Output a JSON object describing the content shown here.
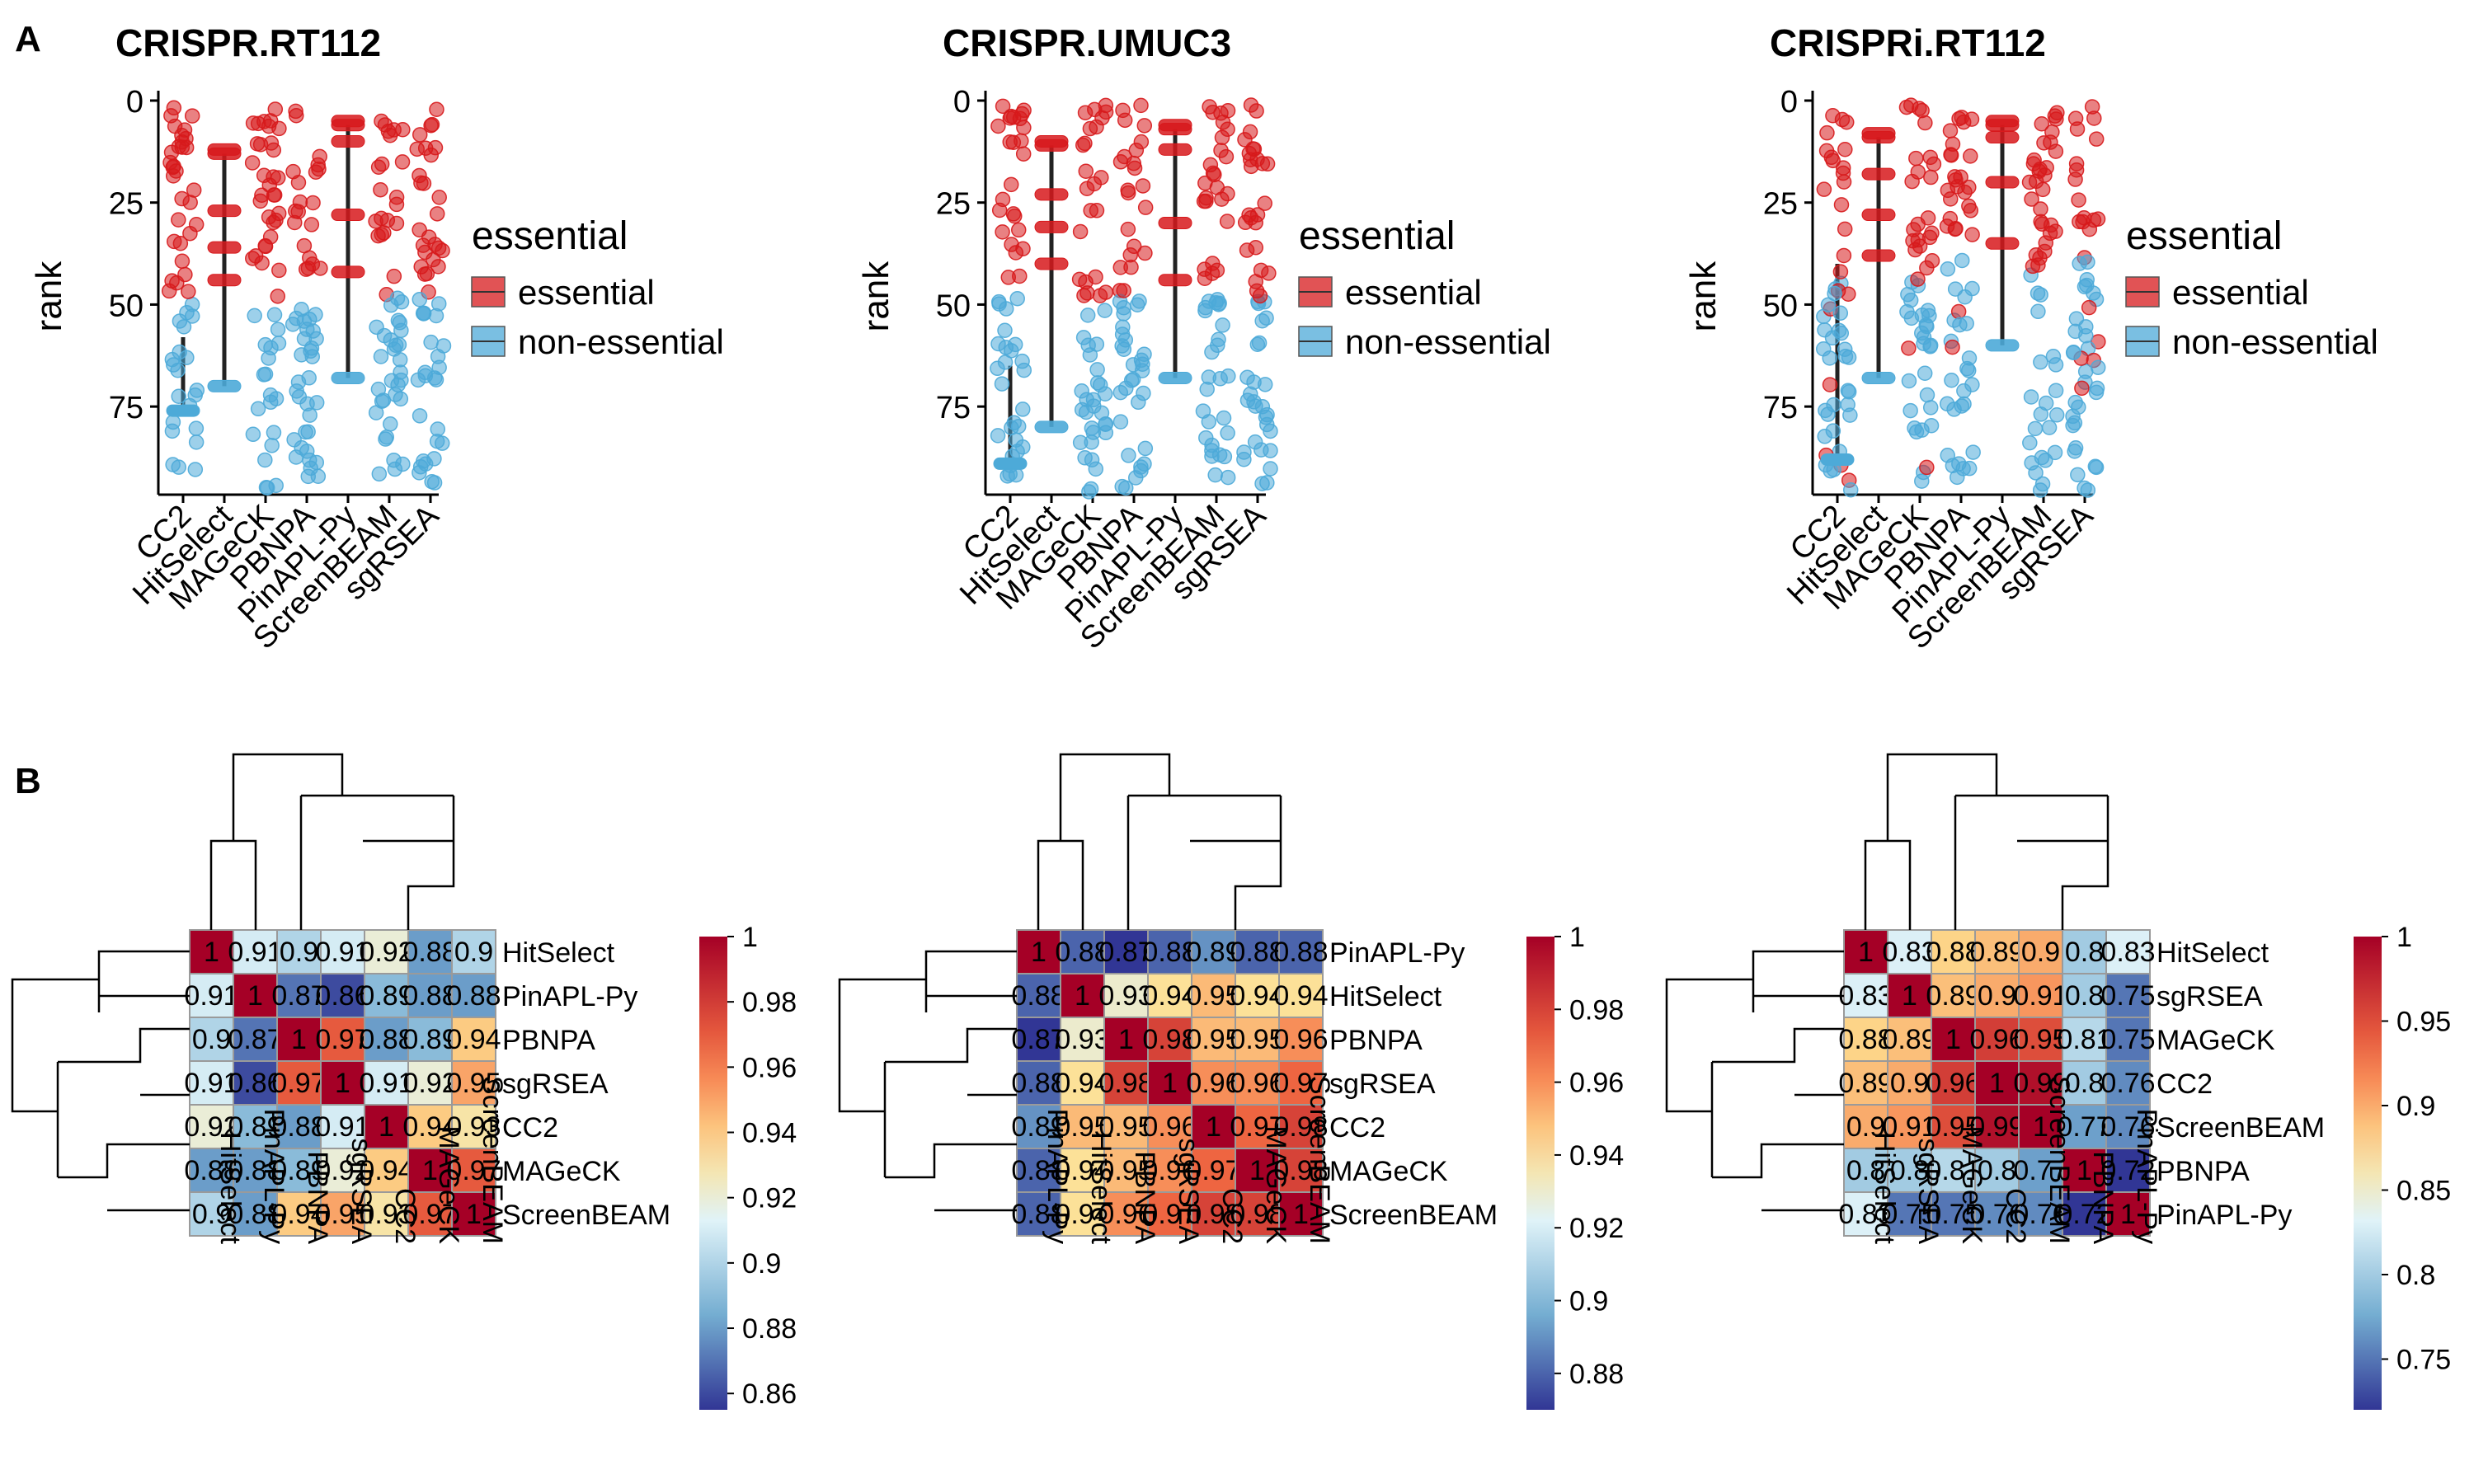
{
  "panel_labels": [
    "A",
    "B"
  ],
  "chart_data": [
    {
      "type": "strip+boxplot",
      "title": "CRISPR.RT112",
      "xlabel": "",
      "ylabel": "rank",
      "ylim": [
        0,
        97
      ],
      "y_reversed": true,
      "y_ticks": [
        0,
        25,
        50,
        75
      ],
      "categories": [
        "CC2",
        "HitSelect",
        "MAGeCK",
        "PBNPA",
        "PinAPL-Py",
        "ScreenBEAM",
        "sgRSEA"
      ],
      "legend": {
        "title": "essential",
        "entries": [
          "essential",
          "non-essential"
        ],
        "position": "right"
      },
      "colors": {
        "essential": "#d7191c",
        "non-essential": "#4daad8"
      },
      "essential_rank_max": [
        48,
        45,
        48,
        48,
        48,
        48,
        48
      ],
      "sparse": {
        "HitSelect": {
          "essential": [
            12,
            13,
            27,
            36,
            44
          ],
          "non-essential": [
            70
          ]
        },
        "PinAPL-Py": {
          "essential": [
            5,
            6,
            10,
            28,
            42
          ],
          "non-essential": [
            68
          ]
        }
      },
      "boxes": [
        {
          "category": "CC2",
          "median": 76,
          "q1": 58,
          "q3": 76
        },
        {
          "category": "HitSelect",
          "median": 70,
          "q1": 13,
          "q3": 70
        },
        {
          "category": "PinAPL-Py",
          "median": 68,
          "q1": 6,
          "q3": 68
        }
      ]
    },
    {
      "type": "strip+boxplot",
      "title": "CRISPR.UMUC3",
      "xlabel": "",
      "ylabel": "rank",
      "ylim": [
        0,
        97
      ],
      "y_reversed": true,
      "y_ticks": [
        0,
        25,
        50,
        75
      ],
      "categories": [
        "CC2",
        "HitSelect",
        "MAGeCK",
        "PBNPA",
        "PinAPL-Py",
        "ScreenBEAM",
        "sgRSEA"
      ],
      "legend": {
        "title": "essential",
        "entries": [
          "essential",
          "non-essential"
        ],
        "position": "right"
      },
      "colors": {
        "essential": "#d7191c",
        "non-essential": "#4daad8"
      },
      "essential_rank_max": [
        45,
        45,
        48,
        48,
        48,
        48,
        48
      ],
      "sparse": {
        "HitSelect": {
          "essential": [
            10,
            11,
            23,
            31,
            40
          ],
          "non-essential": [
            80
          ]
        },
        "PinAPL-Py": {
          "essential": [
            6,
            7,
            12,
            30,
            44
          ],
          "non-essential": [
            68
          ]
        }
      },
      "boxes": [
        {
          "category": "CC2",
          "median": 89,
          "q1": 65,
          "q3": 89
        },
        {
          "category": "HitSelect",
          "median": 80,
          "q1": 11,
          "q3": 80
        },
        {
          "category": "PinAPL-Py",
          "median": 68,
          "q1": 7,
          "q3": 68
        }
      ]
    },
    {
      "type": "strip+boxplot",
      "title": "CRISPRi.RT112",
      "xlabel": "",
      "ylabel": "rank",
      "ylim": [
        0,
        97
      ],
      "y_reversed": true,
      "y_ticks": [
        0,
        25,
        50,
        75
      ],
      "categories": [
        "CC2",
        "HitSelect",
        "MAGeCK",
        "PBNPA",
        "PinAPL-Py",
        "ScreenBEAM",
        "sgRSEA"
      ],
      "legend": {
        "title": "essential",
        "entries": [
          "essential",
          "non-essential"
        ],
        "position": "right"
      },
      "colors": {
        "essential": "#d7191c",
        "non-essential": "#4daad8"
      },
      "essential_rank_max": [
        40,
        44,
        42,
        36,
        46,
        42,
        36
      ],
      "sparse": {
        "HitSelect": {
          "essential": [
            8,
            9,
            18,
            28,
            38
          ],
          "non-essential": [
            68
          ]
        },
        "PinAPL-Py": {
          "essential": [
            5,
            6,
            9,
            20,
            35
          ],
          "non-essential": [
            60
          ]
        }
      },
      "boxes": [
        {
          "category": "CC2",
          "median": 88,
          "q1": 40,
          "q3": 88
        },
        {
          "category": "HitSelect",
          "median": 68,
          "q1": 9,
          "q3": 68
        },
        {
          "category": "PinAPL-Py",
          "median": 60,
          "q1": 6,
          "q3": 60
        }
      ]
    },
    {
      "type": "heatmap",
      "rows": [
        "HitSelect",
        "PinAPL-Py",
        "PBNPA",
        "sgRSEA",
        "CC2",
        "MAGeCK",
        "ScreenBEAM"
      ],
      "cols": [
        "HitSelect",
        "PinAPL-Py",
        "PBNPA",
        "sgRSEA",
        "CC2",
        "MAGeCK",
        "ScreenBEAM"
      ],
      "color_range": [
        0.855,
        1
      ],
      "colorbar_ticks": [
        1,
        0.98,
        0.96,
        0.94,
        0.92,
        0.9,
        0.88,
        0.86
      ],
      "values": [
        [
          1,
          0.91,
          0.9,
          0.91,
          0.92,
          0.88,
          0.9
        ],
        [
          0.91,
          1,
          0.87,
          0.86,
          0.89,
          0.88,
          0.88
        ],
        [
          0.9,
          0.87,
          1,
          0.97,
          0.88,
          0.89,
          0.94
        ],
        [
          0.91,
          0.86,
          0.97,
          1,
          0.91,
          0.92,
          0.95
        ],
        [
          0.92,
          0.89,
          0.88,
          0.91,
          1,
          0.94,
          0.93
        ],
        [
          0.88,
          0.88,
          0.89,
          0.92,
          0.94,
          1,
          0.97
        ],
        [
          0.9,
          0.88,
          0.94,
          0.95,
          0.93,
          0.97,
          1
        ]
      ]
    },
    {
      "type": "heatmap",
      "rows": [
        "PinAPL-Py",
        "HitSelect",
        "PBNPA",
        "sgRSEA",
        "CC2",
        "MAGeCK",
        "ScreenBEAM"
      ],
      "cols": [
        "PinAPL-Py",
        "HitSelect",
        "PBNPA",
        "sgRSEA",
        "CC2",
        "MAGeCK",
        "ScreenBEAM"
      ],
      "color_range": [
        0.87,
        1
      ],
      "colorbar_ticks": [
        1,
        0.98,
        0.96,
        0.94,
        0.92,
        0.9,
        0.88
      ],
      "values": [
        [
          1,
          0.88,
          0.87,
          0.88,
          0.89,
          0.88,
          0.88
        ],
        [
          0.88,
          1,
          0.93,
          0.94,
          0.95,
          0.94,
          0.94
        ],
        [
          0.87,
          0.93,
          1,
          0.98,
          0.95,
          0.95,
          0.96
        ],
        [
          0.88,
          0.94,
          0.98,
          1,
          0.96,
          0.96,
          0.97
        ],
        [
          0.89,
          0.95,
          0.95,
          0.96,
          1,
          0.97,
          0.98
        ],
        [
          0.88,
          0.94,
          0.95,
          0.96,
          0.97,
          1,
          0.98
        ],
        [
          0.88,
          0.94,
          0.96,
          0.97,
          0.98,
          0.98,
          1
        ]
      ]
    },
    {
      "type": "heatmap",
      "rows": [
        "HitSelect",
        "sgRSEA",
        "MAGeCK",
        "CC2",
        "ScreenBEAM",
        "PBNPA",
        "PinAPL-Py"
      ],
      "cols": [
        "HitSelect",
        "sgRSEA",
        "MAGeCK",
        "CC2",
        "ScreenBEAM",
        "PBNPA",
        "PinAPL-Py"
      ],
      "color_range": [
        0.72,
        1
      ],
      "colorbar_ticks": [
        1,
        0.95,
        0.9,
        0.85,
        0.8,
        0.75
      ],
      "values": [
        [
          1,
          0.83,
          0.88,
          0.89,
          0.9,
          0.8,
          0.83
        ],
        [
          0.83,
          1,
          0.89,
          0.9,
          0.91,
          0.8,
          0.75
        ],
        [
          0.88,
          0.89,
          1,
          0.96,
          0.95,
          0.81,
          0.75
        ],
        [
          0.89,
          0.9,
          0.96,
          1,
          0.99,
          0.8,
          0.76
        ],
        [
          0.9,
          0.91,
          0.95,
          0.99,
          1,
          0.77,
          0.76
        ],
        [
          0.8,
          0.8,
          0.81,
          0.8,
          0.77,
          1,
          0.72
        ],
        [
          0.83,
          0.75,
          0.75,
          0.76,
          0.76,
          0.72,
          1
        ]
      ]
    }
  ]
}
